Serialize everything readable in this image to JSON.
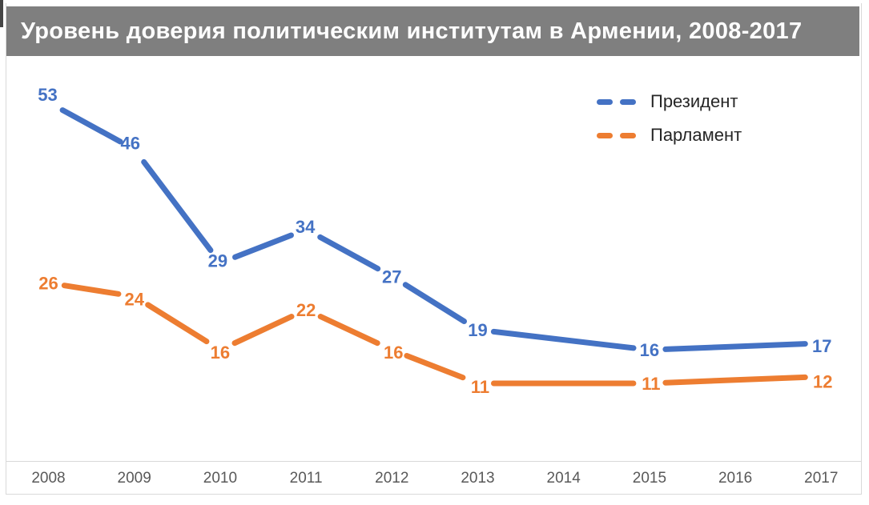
{
  "title": "Уровень доверия политическим институтам в Армении, 2008-2017",
  "legend": {
    "position": "top-right",
    "items": [
      {
        "label": "Президент",
        "color": "#4472C4"
      },
      {
        "label": "Парламент",
        "color": "#ED7D31"
      }
    ]
  },
  "chart_data": {
    "type": "line",
    "title": "Уровень доверия политическим институтам в Армении, 2008-2017",
    "categories": [
      "2008",
      "2009",
      "2010",
      "2011",
      "2012",
      "2013",
      "2014",
      "2015",
      "2016",
      "2017"
    ],
    "series": [
      {
        "name": "Президент",
        "color": "#4472C4",
        "values": [
          53,
          46,
          29,
          34,
          27,
          19,
          null,
          16,
          null,
          17
        ]
      },
      {
        "name": "Парламент",
        "color": "#ED7D31",
        "values": [
          26,
          24,
          16,
          22,
          16,
          11,
          null,
          11,
          null,
          12
        ]
      }
    ],
    "data_labels": true,
    "line_style": "thick-dashed",
    "grid": false,
    "xlabel": "",
    "ylabel": "",
    "ylim": [
      0,
      60
    ],
    "legend_position": "top-right",
    "notes": "no data points shown for 2014 and 2016; lines interpolate across those years"
  },
  "colors": {
    "title_bar": "#7f7f7f",
    "title_text": "#ffffff",
    "axis_text": "#595959",
    "legend_text": "#262626",
    "frame": "#d9d9d9"
  }
}
